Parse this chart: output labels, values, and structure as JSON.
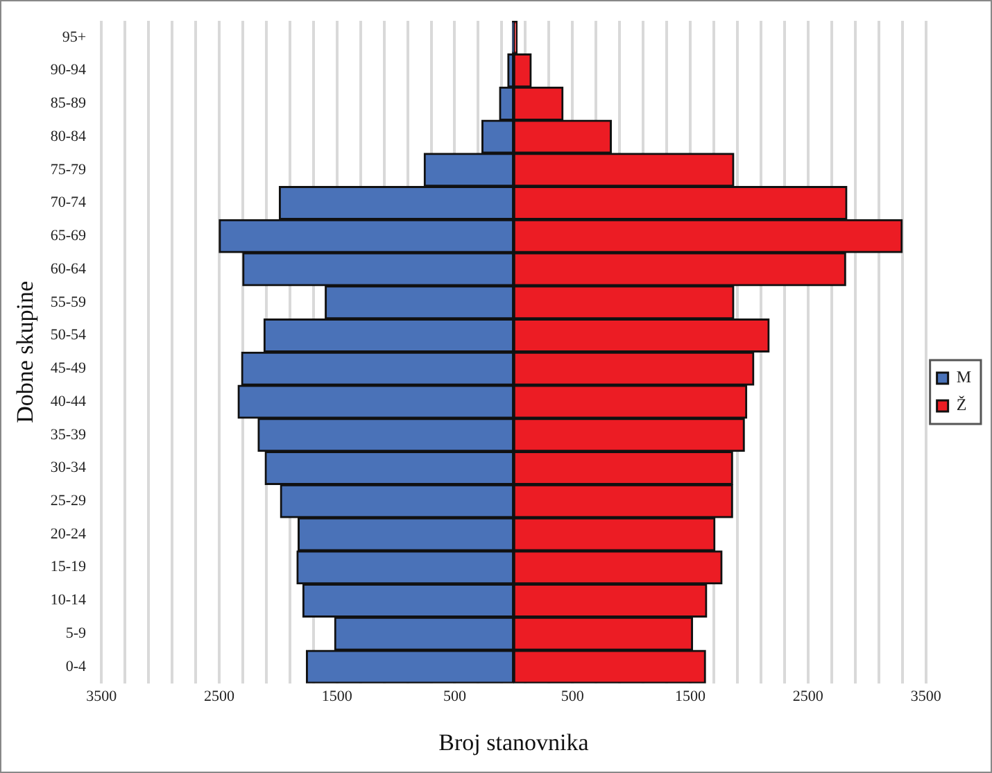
{
  "chart_data": {
    "type": "bar",
    "orientation": "horizontal",
    "stacked": true,
    "xlabel": "Broj stanovnika",
    "ylabel": "Dobne skupine",
    "categories": [
      "95+",
      "90-94",
      "85-89",
      "80-84",
      "75-79",
      "70-74",
      "65-69",
      "60-64",
      "55-59",
      "50-54",
      "45-49",
      "40-44",
      "35-39",
      "30-34",
      "25-29",
      "20-24",
      "15-19",
      "10-14",
      "5-9",
      "0-4"
    ],
    "series": [
      {
        "name": "M",
        "color": "#4a72b8",
        "values": [
          -10,
          -50,
          -120,
          -270,
          -760,
          -1990,
          -2500,
          -2300,
          -1600,
          -2120,
          -2310,
          -2340,
          -2170,
          -2110,
          -1980,
          -1830,
          -1840,
          -1790,
          -1520,
          -1760
        ]
      },
      {
        "name": "Ž",
        "color": "#ec1c24",
        "values": [
          30,
          150,
          420,
          830,
          1870,
          2830,
          3300,
          2820,
          1870,
          2170,
          2040,
          1980,
          1960,
          1860,
          1860,
          1710,
          1770,
          1640,
          1520,
          1630
        ]
      }
    ],
    "xlim": [
      -3500,
      3500
    ],
    "xticks": [
      {
        "value": -3500,
        "label": "3500"
      },
      {
        "value": -3300,
        "label": null
      },
      {
        "value": -3100,
        "label": null
      },
      {
        "value": -2900,
        "label": null
      },
      {
        "value": -2700,
        "label": null
      },
      {
        "value": -2500,
        "label": "2500"
      },
      {
        "value": -2300,
        "label": null
      },
      {
        "value": -2100,
        "label": null
      },
      {
        "value": -1900,
        "label": null
      },
      {
        "value": -1700,
        "label": null
      },
      {
        "value": -1500,
        "label": "1500"
      },
      {
        "value": -1300,
        "label": null
      },
      {
        "value": -1100,
        "label": null
      },
      {
        "value": -900,
        "label": null
      },
      {
        "value": -700,
        "label": null
      },
      {
        "value": -500,
        "label": "500"
      },
      {
        "value": -300,
        "label": null
      },
      {
        "value": -100,
        "label": null
      },
      {
        "value": 100,
        "label": null
      },
      {
        "value": 300,
        "label": null
      },
      {
        "value": 500,
        "label": "500"
      },
      {
        "value": 700,
        "label": null
      },
      {
        "value": 900,
        "label": null
      },
      {
        "value": 1100,
        "label": null
      },
      {
        "value": 1300,
        "label": null
      },
      {
        "value": 1500,
        "label": "1500"
      },
      {
        "value": 1700,
        "label": null
      },
      {
        "value": 1900,
        "label": null
      },
      {
        "value": 2100,
        "label": null
      },
      {
        "value": 2300,
        "label": null
      },
      {
        "value": 2500,
        "label": "2500"
      },
      {
        "value": 2700,
        "label": null
      },
      {
        "value": 2900,
        "label": null
      },
      {
        "value": 3100,
        "label": null
      },
      {
        "value": 3300,
        "label": null
      },
      {
        "value": 3500,
        "label": "3500"
      }
    ],
    "grid": "x",
    "legend": "right"
  }
}
